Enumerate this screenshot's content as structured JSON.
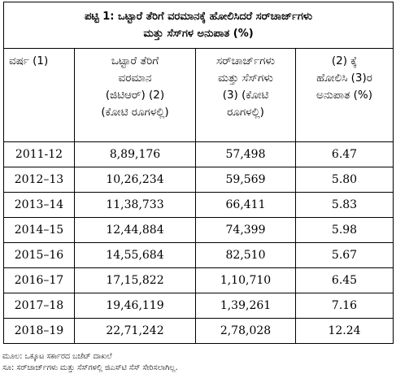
{
  "table": {
    "title_line1": "ಪಟ್ಟಿ 1: ಒಟ್ಟಾರೆ ತೆರಿಗೆ ವರಮಾನಕ್ಕೆ ಹೋಲಿಸಿದರೆ ಸರ್‌ಚಾರ್ಜ್‌ಗಳು",
    "title_line2": "ಮತ್ತು ಸೆಸ್‌ಗಳ ಅನುಪಾತ (%)",
    "headers": [
      [
        "ವರ್ಷ (1)"
      ],
      [
        "ಒಟ್ಟಾರೆ ತೆರಿಗೆ",
        "ವರಮಾನ",
        "(ಜಿಟಿಆರ್) (2)",
        "(ಕೋಟಿ ರೂಗಳಲ್ಲಿ)"
      ],
      [
        "ಸರ್‌ಚಾರ್ಜ್‌ಗಳು",
        "ಮತ್ತು ಸೆಸ್‌ಗಳು",
        "(3) (ಕೋಟಿ",
        "ರೂಗಳಲ್ಲಿ)"
      ],
      [
        "(2) ಕ್ಕೆ",
        "ಹೋಲಿಸಿ (3)ರ",
        "ಅನುಪಾತ (%)"
      ]
    ],
    "rows": [
      {
        "year": "2011-12",
        "gtr": "8,89,176",
        "surcharge": "57,498",
        "ratio": "6.47"
      },
      {
        "year": "2012–13",
        "gtr": "10,26,234",
        "surcharge": "59,569",
        "ratio": "5.80"
      },
      {
        "year": "2013–14",
        "gtr": "11,38,733",
        "surcharge": "66,411",
        "ratio": "5.83"
      },
      {
        "year": "2014–15",
        "gtr": "12,44,884",
        "surcharge": "74,399",
        "ratio": "5.98"
      },
      {
        "year": "2015–16",
        "gtr": "14,55,684",
        "surcharge": "82,510",
        "ratio": "5.67"
      },
      {
        "year": "2016–17",
        "gtr": "17,15,822",
        "surcharge": "1,10,710",
        "ratio": "6.45"
      },
      {
        "year": "2017–18",
        "gtr": "19,46,119",
        "surcharge": "1,39,261",
        "ratio": "7.16"
      },
      {
        "year": "2018–19",
        "gtr": "22,71,242",
        "surcharge": "2,78,028",
        "ratio": "12.24"
      }
    ]
  },
  "footer": {
    "source": "ಮೂಲ: ಒಕ್ಕೂಟ ಸರ್ಕಾರದ ಬಜೆಟ್ ದಾಖಲೆ",
    "note": "ಸೂ: ಸರ್‌ಚಾರ್ಜ್‌ಗಳು ಮತ್ತು ಸೆಸ್‌ಗಳಲ್ಲಿ ಜಿಎಸ್‌ಟಿ ಸೆಸ್ ಸೇರಿಸಲಾಗಿಲ್ಲ."
  }
}
